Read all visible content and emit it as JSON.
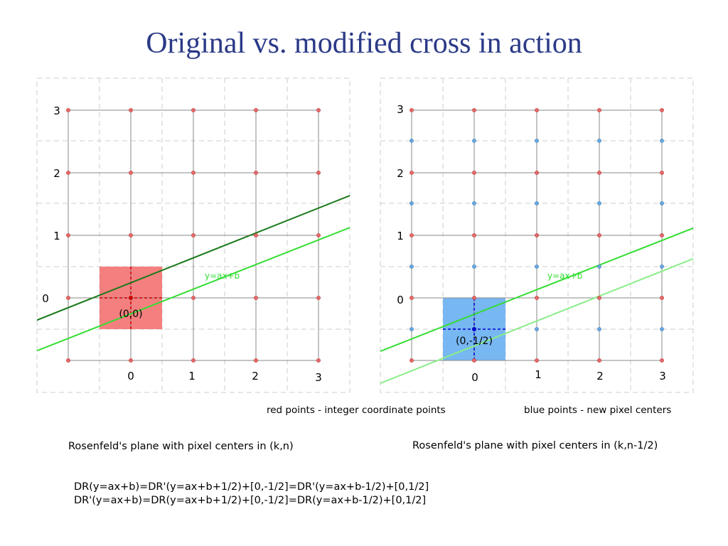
{
  "slide": {
    "title": "Original vs. modified cross in action"
  },
  "left_plane": {
    "y_ticks": [
      "3",
      "2",
      "1",
      "0"
    ],
    "x_ticks": [
      "0",
      "1",
      "2",
      "3"
    ],
    "line_label": "y=ax+b",
    "center_label": "(0,0)",
    "caption": "Rosenfeld's plane with pixel centers in (k,n)"
  },
  "right_plane": {
    "y_ticks": [
      "3",
      "2",
      "1",
      "0"
    ],
    "x_ticks": [
      "0",
      "1",
      "2",
      "3"
    ],
    "line_label": "y=ax+b",
    "center_label": "(0,-1/2)",
    "caption": "Rosenfeld's plane with pixel centers in (k,n-1/2)"
  },
  "legend": {
    "red_points": "red points - integer coordinate points",
    "blue_points": "blue points - new pixel centers"
  },
  "formulas": {
    "line1": "DR(y=ax+b)=DR'(y=ax+b+1/2)+[0,-1/2]=DR'(y=ax+b-1/2)+[0,1/2]",
    "line2": "DR'(y=ax+b)=DR(y=ax+b+1/2)+[0,-1/2]=DR(y=ax+b-1/2)+[0,1/2]"
  },
  "colors": {
    "title": "#2b3a87",
    "red_point": "#e86a6a",
    "blue_point": "#6aa7e0",
    "pixel_red": "#f47f7f",
    "pixel_blue": "#77b7f2",
    "line_dark": "#1b7a1b",
    "line_bright": "#33dd33",
    "line_light": "#88ee88"
  }
}
